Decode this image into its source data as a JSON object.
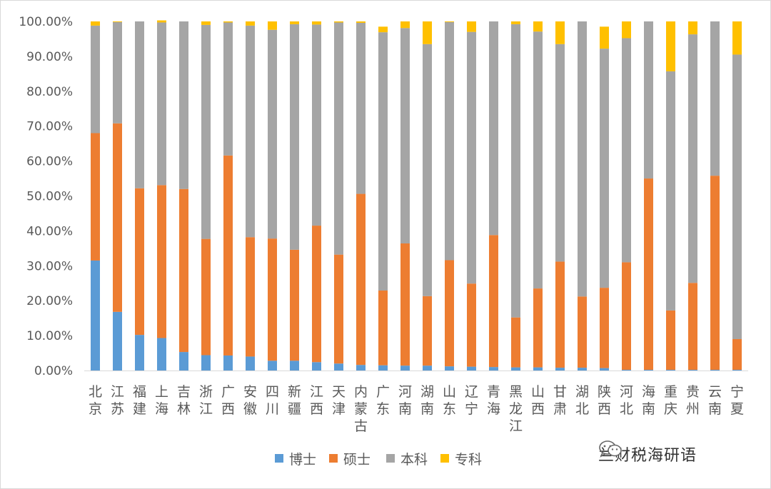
{
  "chart_data": {
    "type": "bar",
    "stacked": true,
    "percent": true,
    "categories": [
      "北京",
      "江苏",
      "福建",
      "上海",
      "吉林",
      "浙江",
      "广西",
      "安徽",
      "四川",
      "新疆",
      "江西",
      "天津",
      "内蒙古",
      "广东",
      "河南",
      "湖南",
      "山东",
      "辽宁",
      "青海",
      "黑龙江",
      "山西",
      "甘肃",
      "湖北",
      "陕西",
      "河北",
      "海南",
      "重庆",
      "贵州",
      "云南",
      "宁夏"
    ],
    "series": [
      {
        "name": "博士",
        "color": "#5B9BD5",
        "values": [
          31.5,
          16.8,
          10.2,
          9.3,
          5.3,
          4.4,
          4.3,
          4.0,
          2.8,
          2.8,
          2.4,
          2.0,
          1.6,
          1.5,
          1.4,
          1.4,
          1.2,
          1.1,
          1.0,
          0.9,
          0.9,
          0.8,
          0.8,
          0.7,
          0.2,
          0.2,
          0.2,
          0.2,
          0.2,
          0.2
        ]
      },
      {
        "name": "硕士",
        "color": "#ED7D31",
        "values": [
          36.5,
          54.0,
          42.0,
          43.8,
          46.7,
          33.3,
          57.3,
          34.2,
          35.0,
          31.8,
          39.1,
          31.2,
          49.0,
          21.4,
          35.0,
          19.9,
          30.4,
          23.8,
          37.8,
          14.3,
          22.6,
          30.4,
          20.4,
          23.0,
          30.8,
          54.8,
          17.0,
          24.9,
          55.6,
          8.8
        ]
      },
      {
        "name": "本科",
        "color": "#A5A5A5",
        "values": [
          30.8,
          29.0,
          47.8,
          46.6,
          48.0,
          61.3,
          38.1,
          60.6,
          59.8,
          64.6,
          57.6,
          66.5,
          49.0,
          74.0,
          61.7,
          72.2,
          68.2,
          72.1,
          61.2,
          84.0,
          73.6,
          62.3,
          78.8,
          68.5,
          64.2,
          45.0,
          68.5,
          71.2,
          44.2,
          81.5
        ]
      },
      {
        "name": "专科",
        "color": "#FFC000",
        "values": [
          1.2,
          0.2,
          0.0,
          0.6,
          0.0,
          1.0,
          0.3,
          1.2,
          2.4,
          0.8,
          0.9,
          0.3,
          0.4,
          1.6,
          1.9,
          6.5,
          0.2,
          3.0,
          0.0,
          0.8,
          2.9,
          6.5,
          0.0,
          6.3,
          4.8,
          0.0,
          14.3,
          3.7,
          0.0,
          9.5
        ]
      }
    ],
    "ylim": [
      0,
      100
    ],
    "yticks": [
      "0.00%",
      "10.00%",
      "20.00%",
      "30.00%",
      "40.00%",
      "50.00%",
      "60.00%",
      "70.00%",
      "80.00%",
      "90.00%",
      "100.00%"
    ],
    "grid": false,
    "legend_position": "bottom"
  },
  "watermark": {
    "text": "兰财税海研语",
    "icon": "wechat-icon"
  }
}
